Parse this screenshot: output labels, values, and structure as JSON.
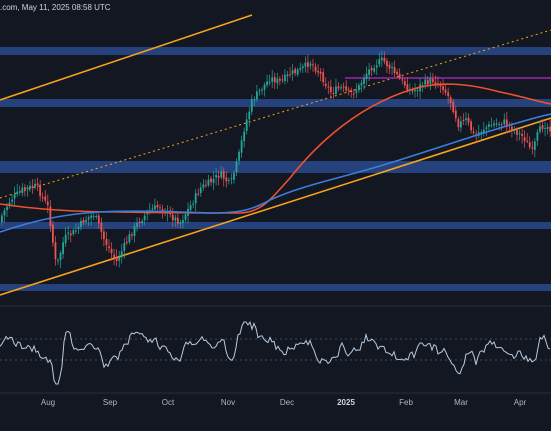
{
  "watermark": ".com, May 11, 2025 08:58 UTC",
  "time_axis": {
    "labels": [
      "Aug",
      "Sep",
      "Oct",
      "Nov",
      "Dec",
      "2025",
      "Feb",
      "Mar",
      "Apr"
    ]
  },
  "colors": {
    "background": "#131722",
    "support_zone": "#2a4a8c",
    "candle_up": "#26a69a",
    "candle_down": "#ef5350",
    "ma_100": "#f0512e",
    "ma_200": "#3b7ddd",
    "trendline": "#f7a21b",
    "resistance_line": "#9c27b0",
    "rsi": "#b8cbe0",
    "rsi_levels": "#787b86",
    "separator": "#2a2e39"
  },
  "chart_data": {
    "type": "candlestick",
    "indicators": [
      "moving average (orange-red)",
      "moving average (blue)",
      "RSI"
    ],
    "grid": false,
    "legend": "none"
  }
}
